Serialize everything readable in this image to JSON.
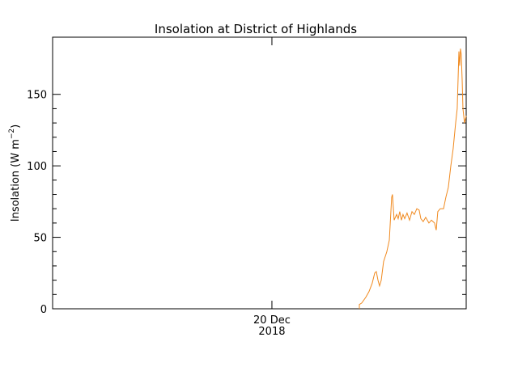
{
  "chart_data": {
    "type": "line",
    "title": "Insolation at District of Highlands",
    "ylabel": [
      "Insolation (W m",
      "−2",
      ")"
    ],
    "x": [
      20.671,
      20.671,
      20.689,
      20.72,
      20.745,
      20.77,
      20.789,
      20.801,
      20.814,
      20.826,
      20.839,
      20.857,
      20.882,
      20.901,
      20.919,
      20.925,
      20.938,
      20.957,
      20.969,
      20.981,
      20.994,
      21.006,
      21.019,
      21.037,
      21.056,
      21.075,
      21.093,
      21.112,
      21.13,
      21.143,
      21.161,
      21.18,
      21.205,
      21.224,
      21.248,
      21.261,
      21.273,
      21.292,
      21.317,
      21.335,
      21.354,
      21.373,
      21.391,
      21.41,
      21.422,
      21.435,
      21.441,
      21.447,
      21.453,
      21.46,
      21.466,
      21.478,
      21.491
    ],
    "series": [
      {
        "color": "#f0891e",
        "values": [
          0,
          3,
          4,
          8,
          12,
          18,
          25,
          26,
          20,
          16,
          20,
          33,
          40,
          48,
          78,
          80,
          62,
          66,
          63,
          68,
          62,
          66,
          63,
          67,
          62,
          68,
          66,
          70,
          69,
          63,
          61,
          64,
          60,
          62,
          60,
          55,
          68,
          70,
          70,
          78,
          85,
          100,
          112,
          130,
          140,
          180,
          170,
          182,
          178,
          160,
          140,
          130,
          135
        ]
      }
    ],
    "xlim": [
      18.317,
      21.491
    ],
    "xticks": [
      {
        "value": 20,
        "label": [
          "20 Dec",
          "2018"
        ]
      }
    ],
    "ylim": [
      0,
      190
    ],
    "yticks": [
      0,
      50,
      100,
      150
    ]
  }
}
